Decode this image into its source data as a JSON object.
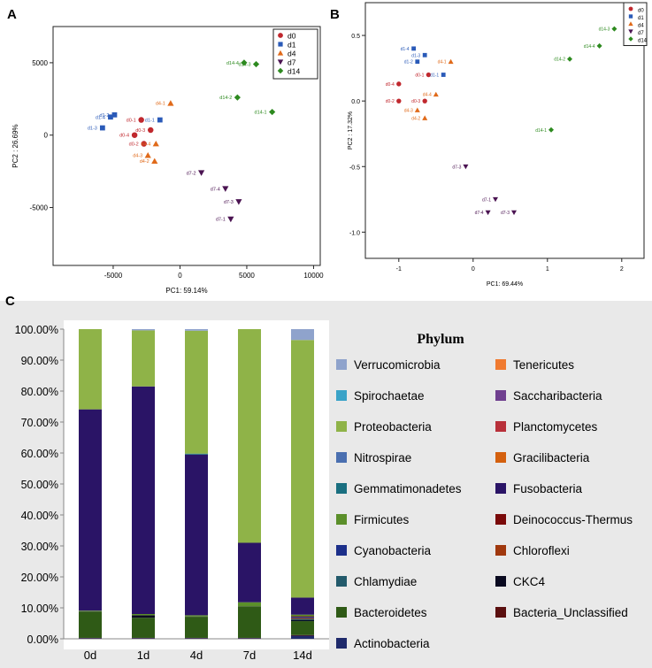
{
  "chart_data": [
    {
      "panel": "A",
      "type": "scatter",
      "xlabel": "PC1: 59.14%",
      "ylabel": "PC2 : 26.69%",
      "xlim": [
        -9500,
        10500
      ],
      "ylim": [
        -9000,
        7500
      ],
      "xticks": [
        -5000,
        0,
        5000,
        10000
      ],
      "yticks": [
        -5000,
        0,
        5000
      ],
      "legend": "top-right",
      "series": [
        {
          "name": "d0",
          "marker": "circle",
          "color": "#c0282e",
          "points": [
            {
              "label": "d0-1",
              "x": -2900,
              "y": 1050
            },
            {
              "label": "d0-3",
              "x": -2200,
              "y": 350
            },
            {
              "label": "d0-4",
              "x": -3400,
              "y": 0
            },
            {
              "label": "d0-2",
              "x": -2700,
              "y": -600
            }
          ]
        },
        {
          "name": "d1",
          "marker": "square",
          "color": "#2a5ab8",
          "points": [
            {
              "label": "d1-2",
              "x": -4900,
              "y": 1400
            },
            {
              "label": "d1-4",
              "x": -5200,
              "y": 1250
            },
            {
              "label": "d1-1",
              "x": -1500,
              "y": 1050
            },
            {
              "label": "d1-3",
              "x": -5800,
              "y": 500
            }
          ]
        },
        {
          "name": "d4",
          "marker": "triangle",
          "color": "#e06a1a",
          "points": [
            {
              "label": "d4-1",
              "x": -700,
              "y": 2200
            },
            {
              "label": "d4-4",
              "x": -1800,
              "y": -600
            },
            {
              "label": "d4-3",
              "x": -2400,
              "y": -1400
            },
            {
              "label": "d4-2",
              "x": -1900,
              "y": -1800
            }
          ]
        },
        {
          "name": "d7",
          "marker": "triangle-down",
          "color": "#4b1452",
          "points": [
            {
              "label": "d7-2",
              "x": 1600,
              "y": -2600
            },
            {
              "label": "d7-4",
              "x": 3400,
              "y": -3700
            },
            {
              "label": "d7-3",
              "x": 4400,
              "y": -4600
            },
            {
              "label": "d7-1",
              "x": 3800,
              "y": -5800
            }
          ]
        },
        {
          "name": "d14",
          "marker": "diamond",
          "color": "#2d8a1f",
          "points": [
            {
              "label": "d14-4",
              "x": 4800,
              "y": 5000
            },
            {
              "label": "d14-3",
              "x": 5700,
              "y": 4900
            },
            {
              "label": "d14-2",
              "x": 4300,
              "y": 2600
            },
            {
              "label": "d14-1",
              "x": 6900,
              "y": 1600
            }
          ]
        }
      ]
    },
    {
      "panel": "B",
      "type": "scatter",
      "xlabel": "PC1: 69.44%",
      "ylabel": "PC2 : 17.32%",
      "xlim": [
        -1.45,
        2.3
      ],
      "ylim": [
        -1.2,
        0.75
      ],
      "xticks": [
        -1,
        0,
        1,
        2
      ],
      "yticks": [
        -1.0,
        -0.5,
        0.0,
        0.5
      ],
      "ytick_labels": [
        "-1.0",
        "-0.5",
        "0.0",
        "0.5"
      ],
      "legend": "top-right",
      "series": [
        {
          "name": "d0",
          "marker": "circle",
          "color": "#c0282e",
          "points": [
            {
              "label": "d0-1",
              "x": -0.6,
              "y": 0.2
            },
            {
              "label": "d0-4",
              "x": -1.0,
              "y": 0.13
            },
            {
              "label": "d0-3",
              "x": -0.65,
              "y": 0.0
            },
            {
              "label": "d0-2",
              "x": -1.0,
              "y": 0.0
            }
          ]
        },
        {
          "name": "d1",
          "marker": "square",
          "color": "#2a5ab8",
          "points": [
            {
              "label": "d1-4",
              "x": -0.8,
              "y": 0.4
            },
            {
              "label": "d1-3",
              "x": -0.65,
              "y": 0.35
            },
            {
              "label": "d1-2",
              "x": -0.75,
              "y": 0.3
            },
            {
              "label": "d1-1",
              "x": -0.4,
              "y": 0.2
            }
          ]
        },
        {
          "name": "d4",
          "marker": "triangle",
          "color": "#e06a1a",
          "points": [
            {
              "label": "d4-1",
              "x": -0.3,
              "y": 0.3
            },
            {
              "label": "d4-4",
              "x": -0.5,
              "y": 0.05
            },
            {
              "label": "d4-3",
              "x": -0.75,
              "y": -0.07
            },
            {
              "label": "d4-2",
              "x": -0.65,
              "y": -0.13
            }
          ]
        },
        {
          "name": "d7",
          "marker": "triangle-down",
          "color": "#4b1452",
          "points": [
            {
              "label": "d7-3",
              "x": -0.1,
              "y": -0.5
            },
            {
              "label": "d7-1",
              "x": 0.3,
              "y": -0.75
            },
            {
              "label": "d7-3",
              "x": 0.55,
              "y": -0.85
            },
            {
              "label": "d7-4",
              "x": 0.2,
              "y": -0.85
            }
          ]
        },
        {
          "name": "d14",
          "marker": "diamond",
          "color": "#2d8a1f",
          "points": [
            {
              "label": "d14-3",
              "x": 1.9,
              "y": 0.55
            },
            {
              "label": "d14-4",
              "x": 1.7,
              "y": 0.42
            },
            {
              "label": "d14-2",
              "x": 1.3,
              "y": 0.32
            },
            {
              "label": "d14-1",
              "x": 1.05,
              "y": -0.22
            }
          ]
        }
      ]
    },
    {
      "panel": "C",
      "type": "bar",
      "stacked": true,
      "title": "Phylum",
      "categories": [
        "0d",
        "1d",
        "4d",
        "7d",
        "14d"
      ],
      "ylim": [
        0,
        100
      ],
      "yticks": [
        0,
        10,
        20,
        30,
        40,
        50,
        60,
        70,
        80,
        90,
        100
      ],
      "ytick_labels": [
        "0.00%",
        "10.00%",
        "20.00%",
        "30.00%",
        "40.00%",
        "50.00%",
        "60.00%",
        "70.00%",
        "80.00%",
        "90.00%",
        "100.00%"
      ],
      "legend": "right",
      "series": [
        {
          "name": "Actinobacteria",
          "color": "#1f2a6b",
          "values": [
            0.2,
            0.2,
            0.2,
            0.2,
            1.0
          ]
        },
        {
          "name": "Bacteria_Unclassified",
          "color": "#5a0f0f",
          "values": [
            0.1,
            0.1,
            0.1,
            0.1,
            0.2
          ]
        },
        {
          "name": "Bacteroidetes",
          "color": "#2f5a16",
          "values": [
            8.5,
            6.5,
            6.8,
            10.0,
            4.5
          ]
        },
        {
          "name": "CKC4",
          "color": "#0a0a20",
          "values": [
            0.1,
            0.8,
            0.1,
            0.1,
            0.3
          ]
        },
        {
          "name": "Chlamydiae",
          "color": "#235a6b",
          "values": [
            0,
            0,
            0,
            0,
            0.4
          ]
        },
        {
          "name": "Chloroflexi",
          "color": "#a0380e",
          "values": [
            0,
            0,
            0,
            0,
            0.3
          ]
        },
        {
          "name": "Cyanobacteria",
          "color": "#1c2f8a",
          "values": [
            0,
            0,
            0,
            0,
            0.4
          ]
        },
        {
          "name": "Deinococcus-Thermus",
          "color": "#7a0a0a",
          "values": [
            0,
            0,
            0,
            0,
            0.2
          ]
        },
        {
          "name": "Firmicutes",
          "color": "#5b8f2a",
          "values": [
            0.2,
            0.4,
            0.4,
            1.4,
            0.5
          ]
        },
        {
          "name": "Fusobacteria",
          "color": "#2a1466",
          "values": [
            65.0,
            73.5,
            51.9,
            19.2,
            5.5
          ]
        },
        {
          "name": "Gemmatimonadetes",
          "color": "#1a6f80",
          "values": [
            0,
            0,
            0.3,
            0,
            0
          ]
        },
        {
          "name": "Gracilibacteria",
          "color": "#d4600e",
          "values": [
            0,
            0,
            0,
            0,
            0
          ]
        },
        {
          "name": "Nitrospirae",
          "color": "#4a6fb0",
          "values": [
            0,
            0,
            0,
            0,
            0
          ]
        },
        {
          "name": "Planctomycetes",
          "color": "#b8303a",
          "values": [
            0,
            0,
            0,
            0,
            0
          ]
        },
        {
          "name": "Proteobacteria",
          "color": "#8fb348",
          "values": [
            25.9,
            18.1,
            39.7,
            69.0,
            83.2
          ]
        },
        {
          "name": "Saccharibacteria",
          "color": "#6f3f8f",
          "values": [
            0,
            0,
            0,
            0,
            0
          ]
        },
        {
          "name": "Spirochaetae",
          "color": "#3aa3c8",
          "values": [
            0,
            0,
            0,
            0,
            0
          ]
        },
        {
          "name": "Tenericutes",
          "color": "#f07a30",
          "values": [
            0,
            0,
            0,
            0,
            0
          ]
        },
        {
          "name": "Verrucomicrobia",
          "color": "#8fa3cc",
          "values": [
            0,
            0.4,
            0.5,
            0,
            3.5
          ]
        }
      ]
    }
  ],
  "panel_labels": {
    "a": "A",
    "b": "B",
    "c": "C"
  }
}
